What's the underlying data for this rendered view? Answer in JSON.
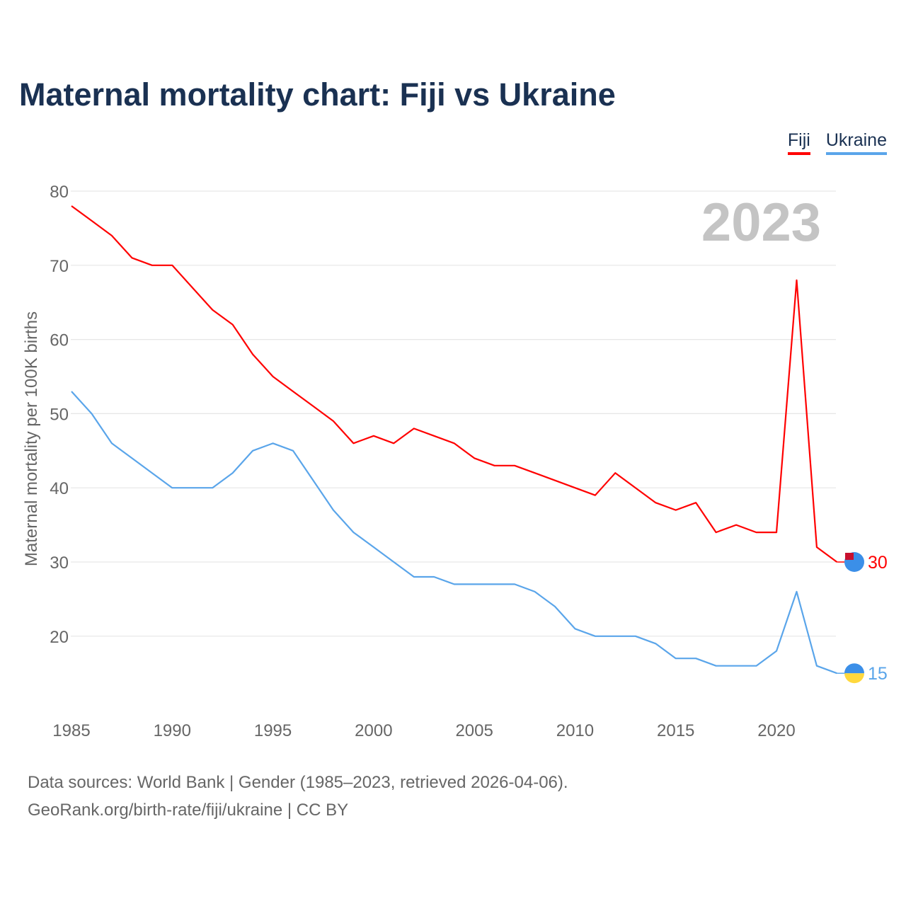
{
  "chart_data": {
    "type": "line",
    "title": "Maternal mortality chart: Fiji vs Ukraine",
    "ylabel": "Maternal mortality per 100K births",
    "xlabel": "",
    "year_label": "2023",
    "ylim": [
      10,
      80
    ],
    "xlim": [
      1985,
      2023
    ],
    "yticks": [
      20,
      30,
      40,
      50,
      60,
      70,
      80
    ],
    "xticks": [
      1985,
      1990,
      1995,
      2000,
      2005,
      2010,
      2015,
      2020
    ],
    "legend_position": "top-right",
    "x": [
      1985,
      1986,
      1987,
      1988,
      1989,
      1990,
      1991,
      1992,
      1993,
      1994,
      1995,
      1996,
      1997,
      1998,
      1999,
      2000,
      2001,
      2002,
      2003,
      2004,
      2005,
      2006,
      2007,
      2008,
      2009,
      2010,
      2011,
      2012,
      2013,
      2014,
      2015,
      2016,
      2017,
      2018,
      2019,
      2020,
      2021,
      2022,
      2023
    ],
    "series": [
      {
        "name": "Fiji",
        "color": "#ff0000",
        "end_label": "30",
        "values": [
          78,
          76,
          74,
          71,
          70,
          70,
          67,
          64,
          62,
          58,
          55,
          53,
          51,
          49,
          46,
          47,
          46,
          48,
          47,
          46,
          44,
          43,
          43,
          42,
          41,
          40,
          39,
          42,
          40,
          38,
          37,
          38,
          34,
          35,
          34,
          34,
          68,
          32,
          30
        ]
      },
      {
        "name": "Ukraine",
        "color": "#5aa5ea",
        "end_label": "15",
        "values": [
          53,
          50,
          46,
          44,
          42,
          40,
          40,
          40,
          42,
          45,
          46,
          45,
          41,
          37,
          34,
          32,
          30,
          28,
          28,
          27,
          27,
          27,
          27,
          26,
          24,
          21,
          20,
          20,
          20,
          19,
          17,
          17,
          16,
          16,
          16,
          18,
          26,
          16,
          15
        ]
      }
    ]
  },
  "footer": {
    "line1": "Data sources: World Bank | Gender (1985–2023, retrieved 2026-04-06).",
    "line2": "GeoRank.org/birth-rate/fiji/ukraine | CC BY"
  }
}
